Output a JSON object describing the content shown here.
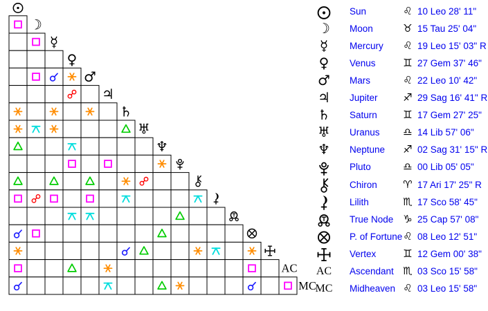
{
  "colors": {
    "background": "#ffffff",
    "grid_line": "#000000",
    "text_blue": "#0000ee",
    "glyph_black": "#000000"
  },
  "aspect_types": {
    "cnj": {
      "name": "conjunction",
      "color": "#1a1aff"
    },
    "sqr": {
      "name": "square",
      "color": "#ff00ff"
    },
    "tri": {
      "name": "trine",
      "color": "#00cc00"
    },
    "sxt": {
      "name": "sextile",
      "color": "#ff8c00"
    },
    "opp": {
      "name": "opposition",
      "color": "#ff0000"
    },
    "qcx": {
      "name": "quincunx",
      "color": "#00dddd"
    }
  },
  "unicode_glyphs": {
    "moon": "☽",
    "mercury": "☿",
    "venus": "♀",
    "mars": "♂",
    "jupiter": "♃",
    "saturn": "♄",
    "uranus": "♅",
    "neptune": "♆",
    "ac": "AC",
    "mc": "MC"
  },
  "chart_data": {
    "type": "table",
    "title": "Natal aspect grid with planetary positions",
    "points": [
      {
        "glyph": "sun",
        "name": "Sun",
        "sign": "Leo",
        "sign_symbol": "♌",
        "position": "10 Leo 28' 11\"",
        "aspects": []
      },
      {
        "glyph": "moon",
        "name": "Moon",
        "sign": "Tau",
        "sign_symbol": "♉",
        "position": "15 Tau 25' 04\"",
        "aspects": [
          "sqr"
        ]
      },
      {
        "glyph": "mercury",
        "name": "Mercury",
        "sign": "Leo",
        "sign_symbol": "♌",
        "position": "19 Leo 15' 03\" R",
        "aspects": [
          "",
          "sqr"
        ]
      },
      {
        "glyph": "venus",
        "name": "Venus",
        "sign": "Gem",
        "sign_symbol": "♊",
        "position": "27 Gem 37' 46\"",
        "aspects": [
          "",
          "",
          ""
        ]
      },
      {
        "glyph": "mars",
        "name": "Mars",
        "sign": "Leo",
        "sign_symbol": "♌",
        "position": "22 Leo 10' 42\"",
        "aspects": [
          "",
          "sqr",
          "cnj",
          "sxt"
        ]
      },
      {
        "glyph": "jupiter",
        "name": "Jupiter",
        "sign": "Sag",
        "sign_symbol": "♐",
        "position": "29 Sag 16' 41\" R",
        "aspects": [
          "",
          "",
          "",
          "opp",
          ""
        ]
      },
      {
        "glyph": "saturn",
        "name": "Saturn",
        "sign": "Gem",
        "sign_symbol": "♊",
        "position": "17 Gem 27' 25\"",
        "aspects": [
          "sxt",
          "",
          "sxt",
          "",
          "sxt",
          ""
        ]
      },
      {
        "glyph": "uranus",
        "name": "Uranus",
        "sign": "Lib",
        "sign_symbol": "♎",
        "position": "14 Lib 57' 06\"",
        "aspects": [
          "sxt",
          "qcx",
          "sxt",
          "",
          "",
          "",
          "tri"
        ]
      },
      {
        "glyph": "neptune",
        "name": "Neptune",
        "sign": "Sag",
        "sign_symbol": "♐",
        "position": "02 Sag 31' 15\" R",
        "aspects": [
          "tri",
          "",
          "",
          "qcx",
          "",
          "",
          "",
          ""
        ]
      },
      {
        "glyph": "pluto",
        "name": "Pluto",
        "sign": "Lib",
        "sign_symbol": "♎",
        "position": "00 Lib 05' 05\"",
        "aspects": [
          "",
          "",
          "",
          "sqr",
          "",
          "sqr",
          "",
          "",
          "sxt"
        ]
      },
      {
        "glyph": "chiron",
        "name": "Chiron",
        "sign": "Ari",
        "sign_symbol": "♈",
        "position": "17 Ari 17' 25\" R",
        "aspects": [
          "tri",
          "",
          "tri",
          "",
          "tri",
          "",
          "sxt",
          "opp",
          "",
          ""
        ]
      },
      {
        "glyph": "lilith",
        "name": "Lilith",
        "sign": "Sco",
        "sign_symbol": "♏",
        "position": "17 Sco 58' 45\"",
        "aspects": [
          "sqr",
          "opp",
          "sqr",
          "",
          "sqr",
          "",
          "qcx",
          "",
          "",
          "",
          "qcx"
        ]
      },
      {
        "glyph": "truenode",
        "name": "True Node",
        "sign": "Cap",
        "sign_symbol": "♑",
        "position": "25 Cap 57' 08\"",
        "aspects": [
          "",
          "",
          "",
          "qcx",
          "qcx",
          "",
          "",
          "",
          "",
          "tri",
          "",
          ""
        ]
      },
      {
        "glyph": "fortune",
        "name": "P. of Fortune",
        "sign": "Leo",
        "sign_symbol": "♌",
        "position": "08 Leo 12' 51\"",
        "aspects": [
          "cnj",
          "sqr",
          "",
          "",
          "",
          "",
          "",
          "",
          "tri",
          "",
          "",
          "",
          ""
        ]
      },
      {
        "glyph": "vertex",
        "name": "Vertex",
        "sign": "Gem",
        "sign_symbol": "♊",
        "position": "12 Gem 00' 38\"",
        "aspects": [
          "sxt",
          "",
          "",
          "",
          "",
          "",
          "cnj",
          "tri",
          "",
          "",
          "sxt",
          "qcx",
          "",
          "sxt"
        ]
      },
      {
        "glyph": "ac",
        "name": "Ascendant",
        "sign": "Sco",
        "sign_symbol": "♏",
        "position": "03 Sco 15' 58\"",
        "aspects": [
          "sqr",
          "",
          "",
          "tri",
          "",
          "sxt",
          "",
          "",
          "",
          "",
          "",
          "",
          "",
          "sqr",
          ""
        ]
      },
      {
        "glyph": "mc",
        "name": "Midheaven",
        "sign": "Leo",
        "sign_symbol": "♌",
        "position": "03 Leo 15' 58\"",
        "aspects": [
          "cnj",
          "",
          "",
          "",
          "",
          "qcx",
          "",
          "",
          "tri",
          "sxt",
          "",
          "",
          "",
          "cnj",
          "",
          "sqr"
        ]
      }
    ]
  }
}
